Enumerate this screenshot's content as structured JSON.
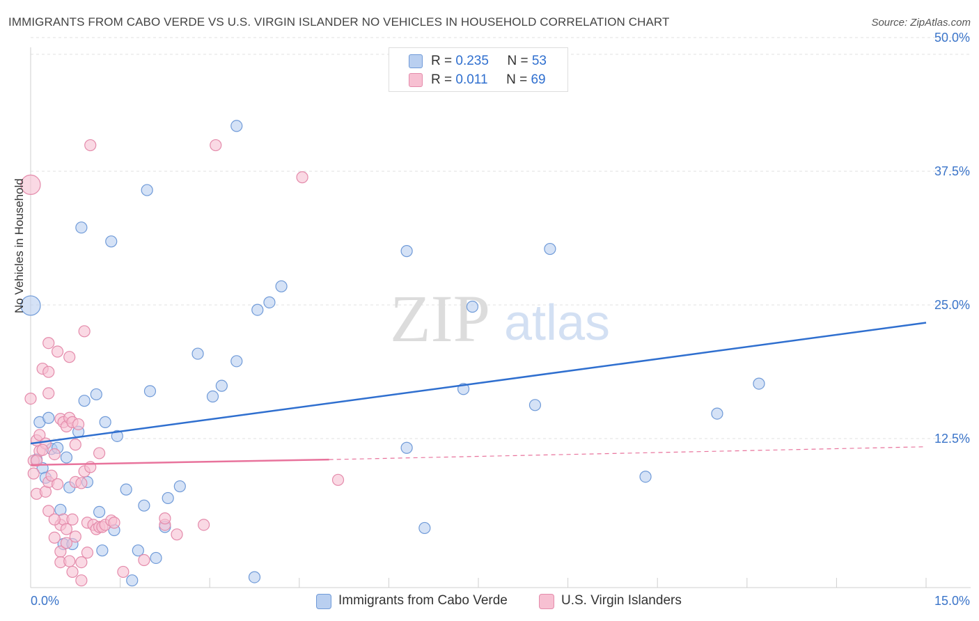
{
  "title": "IMMIGRANTS FROM CABO VERDE VS U.S. VIRGIN ISLANDER NO VEHICLES IN HOUSEHOLD CORRELATION CHART",
  "source": "Source: ZipAtlas.com",
  "watermark": {
    "zip": "ZIP",
    "atlas": "atlas"
  },
  "legend_top": [
    {
      "r_label": "R = ",
      "r_value": "0.235",
      "n_label": "N = ",
      "n_value": "53"
    },
    {
      "r_label": "R = ",
      "r_value": "0.011",
      "n_label": "N = ",
      "n_value": "69"
    }
  ],
  "legend_bottom": [
    "Immigrants from Cabo Verde",
    "U.S. Virgin Islanders"
  ],
  "colors": {
    "blue_fill": "#b9cff0",
    "blue_stroke": "#6f9ad8",
    "blue_line": "#2f6fcf",
    "pink_fill": "#f7c0d2",
    "pink_stroke": "#e48bab",
    "pink_line": "#e8739c",
    "tick_text": "#3a74c9",
    "grid": "#e0e0e0"
  },
  "chart_data": {
    "type": "scatter",
    "xlabel": "",
    "ylabel": "No Vehicles in Household",
    "xlim": [
      0,
      15
    ],
    "ylim": [
      0,
      50
    ],
    "x_tick_labels": [
      "0.0%",
      "15.0%"
    ],
    "y_ticks": [
      12.5,
      25.0,
      37.5,
      50.0
    ],
    "y_tick_labels": [
      "12.5%",
      "25.0%",
      "37.5%",
      "50.0%"
    ],
    "grid": true,
    "legend_position": "top-center",
    "series": [
      {
        "name": "Immigrants from Cabo Verde",
        "points": [
          [
            0.0,
            26.5
          ],
          [
            0.1,
            12.1
          ],
          [
            0.15,
            15.6
          ],
          [
            0.2,
            11.3
          ],
          [
            0.25,
            10.4
          ],
          [
            0.3,
            16.0
          ],
          [
            0.35,
            13.1
          ],
          [
            0.45,
            13.2
          ],
          [
            0.5,
            7.4
          ],
          [
            0.55,
            4.2
          ],
          [
            0.6,
            12.3
          ],
          [
            0.65,
            9.5
          ],
          [
            0.7,
            4.2
          ],
          [
            0.8,
            14.7
          ],
          [
            0.85,
            33.8
          ],
          [
            0.9,
            17.6
          ],
          [
            0.95,
            10.0
          ],
          [
            1.1,
            18.2
          ],
          [
            1.15,
            7.2
          ],
          [
            1.2,
            3.6
          ],
          [
            1.25,
            15.6
          ],
          [
            1.35,
            32.5
          ],
          [
            1.4,
            5.5
          ],
          [
            1.45,
            14.3
          ],
          [
            1.6,
            9.3
          ],
          [
            1.7,
            0.8
          ],
          [
            1.8,
            3.6
          ],
          [
            1.9,
            7.8
          ],
          [
            1.95,
            37.3
          ],
          [
            2.0,
            18.5
          ],
          [
            2.1,
            2.9
          ],
          [
            2.25,
            5.8
          ],
          [
            2.3,
            8.5
          ],
          [
            2.5,
            9.6
          ],
          [
            2.8,
            22.0
          ],
          [
            3.05,
            18.0
          ],
          [
            3.2,
            19.0
          ],
          [
            3.45,
            21.3
          ],
          [
            3.45,
            43.3
          ],
          [
            3.75,
            1.1
          ],
          [
            3.8,
            26.1
          ],
          [
            4.0,
            26.8
          ],
          [
            4.2,
            28.3
          ],
          [
            6.3,
            31.6
          ],
          [
            6.3,
            13.2
          ],
          [
            6.6,
            5.7
          ],
          [
            7.25,
            18.7
          ],
          [
            7.4,
            26.4
          ],
          [
            8.45,
            17.2
          ],
          [
            8.7,
            31.8
          ],
          [
            10.3,
            10.5
          ],
          [
            11.5,
            16.4
          ],
          [
            12.2,
            19.2
          ]
        ],
        "trend": {
          "x": [
            0,
            15
          ],
          "y": [
            13.6,
            24.9
          ]
        }
      },
      {
        "name": "U.S. Virgin Islanders",
        "points": [
          [
            0.0,
            37.8
          ],
          [
            0.0,
            17.8
          ],
          [
            0.05,
            10.8
          ],
          [
            0.05,
            12.0
          ],
          [
            0.1,
            8.9
          ],
          [
            0.1,
            13.9
          ],
          [
            0.15,
            12.9
          ],
          [
            0.15,
            14.4
          ],
          [
            0.2,
            20.6
          ],
          [
            0.25,
            9.1
          ],
          [
            0.25,
            13.6
          ],
          [
            0.3,
            20.3
          ],
          [
            0.3,
            23.0
          ],
          [
            0.3,
            10.0
          ],
          [
            0.3,
            7.3
          ],
          [
            0.3,
            18.3
          ],
          [
            0.35,
            10.6
          ],
          [
            0.4,
            4.8
          ],
          [
            0.4,
            12.6
          ],
          [
            0.45,
            22.2
          ],
          [
            0.45,
            9.8
          ],
          [
            0.5,
            6.0
          ],
          [
            0.5,
            3.5
          ],
          [
            0.5,
            2.5
          ],
          [
            0.5,
            15.9
          ],
          [
            0.55,
            6.5
          ],
          [
            0.55,
            15.6
          ],
          [
            0.6,
            5.6
          ],
          [
            0.6,
            15.2
          ],
          [
            0.6,
            4.3
          ],
          [
            0.65,
            2.6
          ],
          [
            0.65,
            16.0
          ],
          [
            0.65,
            21.7
          ],
          [
            0.7,
            6.5
          ],
          [
            0.7,
            15.6
          ],
          [
            0.75,
            4.9
          ],
          [
            0.75,
            13.5
          ],
          [
            0.75,
            10.0
          ],
          [
            0.8,
            15.4
          ],
          [
            0.85,
            9.9
          ],
          [
            0.85,
            2.5
          ],
          [
            0.85,
            0.8
          ],
          [
            0.9,
            11.0
          ],
          [
            0.9,
            24.1
          ],
          [
            0.95,
            6.2
          ],
          [
            0.95,
            3.4
          ],
          [
            1.0,
            11.4
          ],
          [
            1.05,
            6.0
          ],
          [
            1.1,
            5.6
          ],
          [
            1.15,
            12.7
          ],
          [
            1.15,
            5.8
          ],
          [
            1.2,
            5.8
          ],
          [
            1.25,
            6.0
          ],
          [
            1.35,
            6.4
          ],
          [
            1.4,
            6.2
          ],
          [
            1.55,
            1.6
          ],
          [
            1.9,
            2.7
          ],
          [
            2.25,
            6.0
          ],
          [
            2.25,
            6.6
          ],
          [
            2.45,
            5.1
          ],
          [
            2.9,
            6.0
          ],
          [
            3.1,
            41.5
          ],
          [
            4.55,
            38.5
          ],
          [
            5.15,
            10.2
          ],
          [
            1.0,
            41.5
          ],
          [
            0.1,
            12.0
          ],
          [
            0.2,
            13.0
          ],
          [
            0.4,
            6.5
          ],
          [
            0.7,
            1.6
          ]
        ],
        "trend": {
          "solid_x": [
            0,
            5.0
          ],
          "solid_y": [
            11.6,
            12.1
          ],
          "dashed_x": [
            5.0,
            15
          ],
          "dashed_y": [
            12.1,
            13.3
          ]
        }
      }
    ]
  }
}
